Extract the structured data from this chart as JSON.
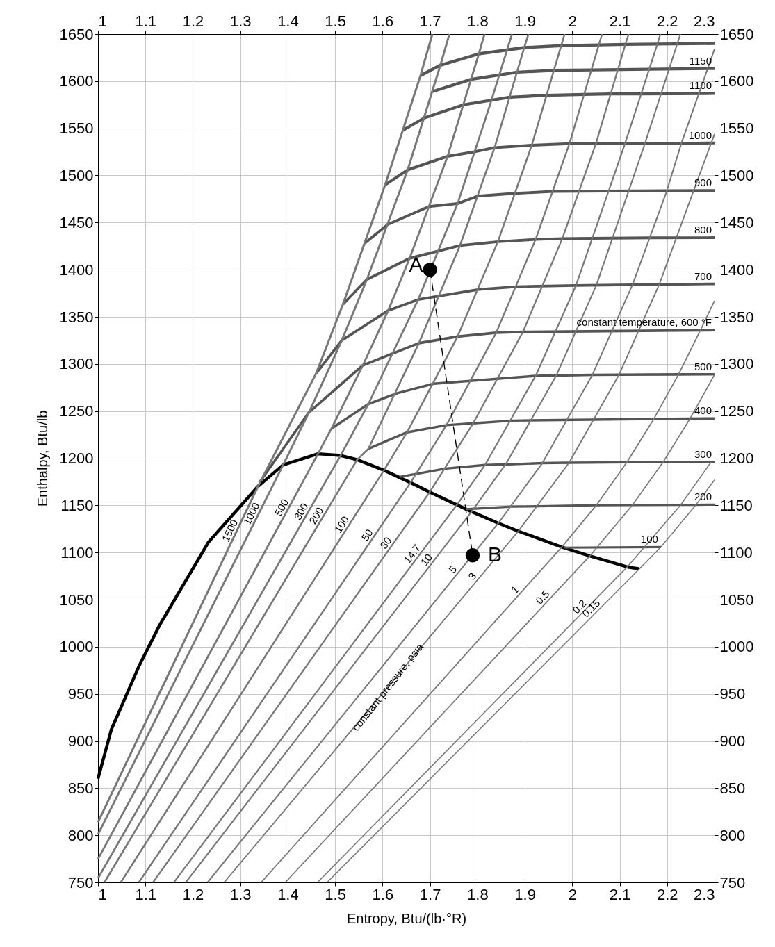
{
  "chart_data": {
    "type": "line",
    "xlabel": "Entropy,  Btu/(lb·°R)",
    "ylabel": "Enthalpy,  Btu/lb",
    "xlim": [
      1,
      2.3
    ],
    "xticks": [
      1,
      1.1,
      1.2,
      1.3,
      1.4,
      1.5,
      1.6,
      1.7,
      1.8,
      1.9,
      2,
      2.1,
      2.2,
      2.3
    ],
    "x2lim": [
      1,
      2.3
    ],
    "x2ticks": [
      1,
      1.1,
      1.2,
      1.3,
      1.4,
      1.5,
      1.6,
      1.7,
      1.8,
      1.9,
      2,
      2.1,
      2.2,
      2.3
    ],
    "ylim": [
      750,
      1650
    ],
    "yticks": [
      750,
      800,
      850,
      900,
      950,
      1000,
      1050,
      1100,
      1150,
      1200,
      1250,
      1300,
      1350,
      1400,
      1450,
      1500,
      1550,
      1600,
      1650
    ],
    "y2lim": [
      750,
      1650
    ],
    "y2ticks": [
      750,
      800,
      850,
      900,
      950,
      1000,
      1050,
      1100,
      1150,
      1200,
      1250,
      1300,
      1350,
      1400,
      1450,
      1500,
      1550,
      1600,
      1650
    ],
    "grid": true,
    "series": [
      {
        "color": "#000000",
        "x": [
          1.0,
          1.028,
          1.086,
          1.13,
          1.233,
          1.3373,
          1.3903,
          1.4639,
          1.5115,
          1.5464,
          1.603,
          1.659,
          1.6995,
          1.7567,
          1.7877,
          1.8441,
          1.8863,
          1.9779,
          2.037,
          2.116,
          2.1416
        ],
        "values": [
          860,
          912,
          979,
          1023,
          1111,
          1170.1,
          1192.9,
          1204.7,
          1202.9,
          1198.4,
          1187.2,
          1174.1,
          1164.1,
          1150.5,
          1143.3,
          1131.1,
          1122.6,
          1105.8,
          1096.3,
          1084.7,
          1082.6
        ]
      },
      {
        "color": "#000000",
        "line_style": "dashed",
        "marker": "circle",
        "x": [
          1.7,
          1.79
        ],
        "values": [
          1400,
          1097
        ]
      },
      {
        "color": "#555555",
        "x": [
          1.68,
          1.722,
          1.803,
          1.899,
          1.977,
          2.056,
          2.112,
          2.3
        ],
        "values": [
          1606,
          1617,
          1629,
          1635.6,
          1637.7,
          1638.5,
          1639,
          1640
        ]
      },
      {
        "name": "1150",
        "color": "#555555",
        "x": [
          1.705,
          1.787,
          1.884,
          1.962,
          2.041,
          2.3
        ],
        "values": [
          1589,
          1602,
          1609.5,
          1611.5,
          1612,
          1613.5
        ]
      },
      {
        "name": "1100",
        "color": "#555555",
        "x": [
          1.643,
          1.688,
          1.771,
          1.868,
          1.946,
          2.025,
          2.081,
          2.145,
          2.3
        ],
        "values": [
          1548,
          1561,
          1575,
          1583,
          1585,
          1586,
          1586.5,
          1586.5,
          1587
        ]
      },
      {
        "name": "1000",
        "color": "#555555",
        "x": [
          1.6055,
          1.653,
          1.7371,
          1.793,
          1.8363,
          1.9147,
          1.994,
          2.05,
          2.111,
          2.153,
          2.23,
          2.3
        ],
        "values": [
          1490,
          1505.9,
          1520.3,
          1525,
          1529.5,
          1532.1,
          1533.7,
          1534,
          1534,
          1534,
          1534,
          1534.5
        ]
      },
      {
        "name": "900",
        "color": "#555555",
        "x": [
          1.562,
          1.611,
          1.698,
          1.7582,
          1.8,
          1.879,
          1.959,
          2.075,
          2.199,
          2.3
        ],
        "values": [
          1428,
          1448,
          1467,
          1470.1,
          1478,
          1481,
          1483,
          1483.5,
          1483.8,
          1484
        ]
      },
      {
        "name": "800",
        "color": "#555555",
        "x": [
          1.5166,
          1.567,
          1.6571,
          1.7632,
          1.8431,
          1.9227,
          1.979,
          2.04,
          2.165,
          2.3
        ],
        "values": [
          1363.4,
          1389.6,
          1412.1,
          1425.6,
          1429.7,
          1432.1,
          1433,
          1433.3,
          1433.8,
          1434
        ]
      },
      {
        "name": "700",
        "color": "#555555",
        "x": [
          1.46,
          1.5141,
          1.612,
          1.6751,
          1.8027,
          1.8825,
          2.0078,
          2.127,
          2.1833,
          2.3
        ],
        "values": [
          1290,
          1325,
          1356.7,
          1368.3,
          1379,
          1382,
          1383.2,
          1384,
          1384.2,
          1385
        ]
      },
      {
        "name": "constant temperature, 600 °F",
        "color": "#555555",
        "x": [
          1.34,
          1.445,
          1.5585,
          1.6767,
          1.7582,
          1.8395,
          1.896,
          2.2702,
          2.3
        ],
        "values": [
          1174,
          1248.8,
          1298.6,
          1322.1,
          1329.1,
          1333.1,
          1334,
          1335.7,
          1335.8
        ]
      },
      {
        "name": "500",
        "color": "#555555",
        "x": [
          1.4923,
          1.5701,
          1.631,
          1.708,
          1.9227,
          1.9664,
          2.0425,
          2.0988,
          2.2233,
          2.3
        ],
        "values": [
          1231.5,
          1257.5,
          1269,
          1279,
          1287.4,
          1287.8,
          1288.5,
          1288.7,
          1288.9,
          1289
        ]
      },
      {
        "name": "400",
        "color": "#555555",
        "x": [
          1.5703,
          1.6517,
          1.7348,
          1.791,
          1.8743,
          2.172,
          2.2484,
          2.3
        ],
        "values": [
          1210.1,
          1227.5,
          1235.1,
          1237,
          1239.9,
          1241.7,
          1242,
          1242.2
        ]
      },
      {
        "name": "300",
        "color": "#555555",
        "x": [
          1.6356,
          1.7334,
          1.816,
          1.8595,
          1.9369,
          1.9932,
          2.1153,
          2.1917,
          2.2927,
          2.3
        ],
        "values": [
          1180.2,
          1189,
          1192.8,
          1193.4,
          1194.8,
          1195.2,
          1195.7,
          1196,
          1196.2,
          1196.2
        ]
      },
      {
        "name": "200",
        "color": "#555555",
        "x": [
          1.7762,
          1.872,
          2.0508,
          2.127,
          2.228,
          2.26,
          2.3
        ],
        "values": [
          1146,
          1148.6,
          1150.1,
          1150.4,
          1150.5,
          1150.6,
          1150.7
        ]
      },
      {
        "name": "100",
        "color": "#555555",
        "x": [
          1.9826,
          2.187
        ],
        "values": [
          1105.1,
          1105.8
        ]
      },
      {
        "name": "1500",
        "color": "#777777",
        "x": [
          1.0,
          1.3373,
          1.46,
          1.5166,
          1.6055,
          1.68,
          1.705
        ],
        "values": [
          813.9,
          1170.1,
          1290,
          1363.4,
          1490,
          1606,
          1650
        ]
      },
      {
        "name": "1000",
        "color": "#777777",
        "x": [
          1.0,
          1.3903,
          1.445,
          1.5141,
          1.567,
          1.653,
          1.722,
          1.741
        ],
        "values": [
          800.9,
          1192.9,
          1248.8,
          1325,
          1389.6,
          1505.9,
          1617,
          1650
        ]
      },
      {
        "name": "500",
        "color": "#777777",
        "x": [
          1.0,
          1.4639,
          1.4923,
          1.5585,
          1.612,
          1.6571,
          1.7371,
          1.803,
          1.815
        ],
        "values": [
          774.8,
          1204.7,
          1231.5,
          1298.6,
          1356.7,
          1412.1,
          1520.3,
          1629,
          1650
        ]
      },
      {
        "name": "300",
        "color": "#777777",
        "x": [
          1.0,
          1.5115,
          1.5701,
          1.6751,
          1.7582,
          1.826,
          1.873
        ],
        "values": [
          754.4,
          1202.9,
          1257.5,
          1368.3,
          1470.1,
          1574,
          1650
        ]
      },
      {
        "name": "200",
        "color": "#777777",
        "x": [
          1.0135,
          1.5464,
          1.5703,
          1.6767,
          1.7632,
          1.8363,
          1.8987,
          1.9075
        ],
        "values": [
          750,
          1198.4,
          1210.1,
          1322.1,
          1425.6,
          1529.5,
          1635.6,
          1650
        ]
      },
      {
        "name": "100",
        "color": "#777777",
        "x": [
          1.048,
          1.603,
          1.6517,
          1.7582,
          1.8431,
          1.9147,
          1.9767,
          1.984
        ],
        "values": [
          750,
          1187.2,
          1227.5,
          1329.1,
          1429.7,
          1532.1,
          1637.7,
          1650
        ]
      },
      {
        "name": "50",
        "color": "#777777",
        "x": [
          1.086,
          1.659,
          1.7348,
          1.8395,
          1.9227,
          1.994,
          2.056,
          2.063
        ],
        "values": [
          750,
          1174.1,
          1235.1,
          1333.1,
          1432.1,
          1533.7,
          1638.5,
          1650
        ]
      },
      {
        "name": "30",
        "color": "#777777",
        "x": [
          1.116,
          1.6995,
          1.791,
          1.896,
          1.979,
          2.05,
          2.112,
          2.119
        ],
        "values": [
          750,
          1164.1,
          1237,
          1334,
          1433,
          1534,
          1639,
          1650
        ]
      },
      {
        "name": "14.7",
        "color": "#777777",
        "x": [
          1.16,
          1.7567,
          1.816,
          1.9227,
          2.0078,
          2.111,
          2.178,
          2.186
        ],
        "values": [
          750,
          1150.5,
          1192.8,
          1287.4,
          1383.2,
          1533.5,
          1637,
          1650
        ]
      },
      {
        "name": "10",
        "color": "#777777",
        "x": [
          1.185,
          1.7877,
          1.8595,
          1.9664,
          2.0508,
          2.1533,
          2.22,
          2.228
        ],
        "values": [
          750,
          1143.3,
          1193.4,
          1287.8,
          1383.6,
          1533.9,
          1637.5,
          1650
        ]
      },
      {
        "name": "5",
        "color": "#777777",
        "x": [
          1.231,
          1.8441,
          1.9369,
          2.0425,
          2.127,
          2.199,
          2.23,
          2.3
        ],
        "values": [
          750,
          1131.1,
          1194.8,
          1288.5,
          1384,
          1483,
          1534,
          1634
        ]
      },
      {
        "name": "3",
        "color": "#777777",
        "x": [
          1.266,
          1.8863,
          1.9932,
          2.0988,
          2.1833,
          2.2553,
          2.3
        ],
        "values": [
          750,
          1122.6,
          1195.2,
          1288.7,
          1384.2,
          1483,
          1544
        ]
      },
      {
        "name": "1",
        "color": "#777777",
        "x": [
          1.344,
          1.9779,
          2.0508,
          2.1153,
          2.172,
          2.2233,
          2.2702,
          2.3
        ],
        "values": [
          750,
          1105.8,
          1150.1,
          1195.7,
          1241.7,
          1288.2,
          1335.7,
          1367
        ]
      },
      {
        "name": "0.5",
        "color": "#777777",
        "x": [
          1.395,
          2.037,
          2.127,
          2.1917,
          2.2484,
          2.2997
        ],
        "values": [
          750,
          1096.3,
          1150.4,
          1196,
          1242,
          1288.3
        ]
      },
      {
        "name": "0.2",
        "color": "#777777",
        "x": [
          1.463,
          2.116,
          2.228,
          2.2927
        ],
        "values": [
          750,
          1084.7,
          1150,
          1196
        ]
      },
      {
        "name": "0.15",
        "color": "#777777",
        "x": [
          1.483,
          2.1416,
          2.187,
          2.26,
          2.3
        ],
        "values": [
          750,
          1082.6,
          1105.8,
          1150,
          1177
        ]
      }
    ],
    "annotations": [
      {
        "text": "A",
        "x": 1.7,
        "y": 1400
      },
      {
        "text": "B",
        "x": 1.79,
        "y": 1097
      },
      "constant pressure, psia"
    ]
  }
}
